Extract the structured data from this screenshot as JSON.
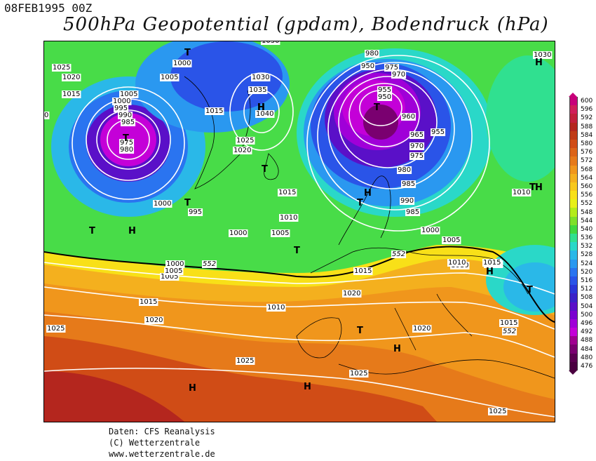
{
  "header": {
    "date": "08FEB1995 00Z",
    "title": "500hPa Geopotential (gpdam), Bodendruck (hPa)"
  },
  "footer": {
    "line1": "Daten: CFS Reanalysis",
    "line2": "(C) Wetterzentrale",
    "line3": "www.wetterzentrale.de"
  },
  "legend": {
    "levels": [
      "600",
      "596",
      "592",
      "588",
      "584",
      "580",
      "576",
      "572",
      "568",
      "564",
      "560",
      "556",
      "552",
      "548",
      "544",
      "540",
      "536",
      "532",
      "528",
      "524",
      "520",
      "516",
      "512",
      "508",
      "504",
      "500",
      "496",
      "492",
      "488",
      "484",
      "480",
      "476"
    ],
    "colors": [
      "#c8007a",
      "#d01e5a",
      "#c2203c",
      "#b4261e",
      "#c03a16",
      "#d04c16",
      "#dc6418",
      "#e67a1a",
      "#f0961c",
      "#f4b01e",
      "#f8c81c",
      "#f8e018",
      "#e8f018",
      "#b4ec1a",
      "#7ee02a",
      "#40d840",
      "#30e090",
      "#2ad8c8",
      "#2ab8e8",
      "#2a98f0",
      "#2a74f0",
      "#2a54e8",
      "#2a36d8",
      "#3a22c8",
      "#5a10c8",
      "#7a00d0",
      "#a000d8",
      "#c400d8",
      "#a00090",
      "#7a0070",
      "#5a0050",
      "#4a0040"
    ]
  },
  "labels": {
    "isobars": [
      {
        "t": "1025"
      },
      {
        "t": "1020"
      },
      {
        "t": "1015"
      },
      {
        "t": "1005"
      },
      {
        "t": "1000"
      },
      {
        "t": "995"
      },
      {
        "t": "990"
      },
      {
        "t": "985"
      },
      {
        "t": "975"
      },
      {
        "t": "980"
      },
      {
        "t": "1000"
      },
      {
        "t": "1005"
      },
      {
        "t": "1030"
      },
      {
        "t": "1035"
      },
      {
        "t": "1040"
      },
      {
        "t": "1015"
      },
      {
        "t": "1025"
      },
      {
        "t": "1020"
      },
      {
        "t": "980"
      },
      {
        "t": "975"
      },
      {
        "t": "970"
      },
      {
        "t": "950"
      },
      {
        "t": "955"
      },
      {
        "t": "950"
      },
      {
        "t": "960"
      },
      {
        "t": "965"
      },
      {
        "t": "955"
      },
      {
        "t": "970"
      },
      {
        "t": "975"
      },
      {
        "t": "980"
      },
      {
        "t": "985"
      },
      {
        "t": "990"
      },
      {
        "t": "985"
      },
      {
        "t": "1030"
      },
      {
        "t": "1010"
      },
      {
        "t": "1015"
      },
      {
        "t": "1010"
      },
      {
        "t": "1005"
      },
      {
        "t": "1000"
      },
      {
        "t": "1000"
      },
      {
        "t": "995"
      },
      {
        "t": "1000"
      },
      {
        "t": "1005"
      },
      {
        "t": "1000"
      },
      {
        "t": "1005"
      },
      {
        "t": "1010"
      },
      {
        "t": "1015"
      },
      {
        "t": "1015"
      },
      {
        "t": "1020"
      },
      {
        "t": "1010"
      },
      {
        "t": "1015"
      },
      {
        "t": "1020"
      },
      {
        "t": "1025"
      },
      {
        "t": "1020"
      },
      {
        "t": "1025"
      },
      {
        "t": "1025"
      },
      {
        "t": "1015"
      },
      {
        "t": "1010"
      },
      {
        "t": "1005"
      },
      {
        "t": "1025"
      },
      {
        "t": "1030"
      },
      {
        "t": "0"
      },
      {
        "t": "1010"
      },
      {
        "t": "1015"
      }
    ],
    "contour_552": [
      {
        "t": "552"
      },
      {
        "t": "552"
      },
      {
        "t": "552"
      }
    ],
    "centers": [
      {
        "t": "T"
      },
      {
        "t": "H"
      },
      {
        "t": "T"
      },
      {
        "t": "H"
      },
      {
        "t": "T"
      },
      {
        "t": "T"
      },
      {
        "t": "T"
      },
      {
        "t": "H"
      },
      {
        "t": "T"
      },
      {
        "t": "H"
      },
      {
        "t": "T"
      },
      {
        "t": "T"
      },
      {
        "t": "H"
      },
      {
        "t": "H"
      },
      {
        "t": "T"
      },
      {
        "t": "T"
      },
      {
        "t": "H"
      },
      {
        "t": "H"
      },
      {
        "t": "H"
      },
      {
        "t": "H"
      },
      {
        "t": "T"
      }
    ]
  }
}
